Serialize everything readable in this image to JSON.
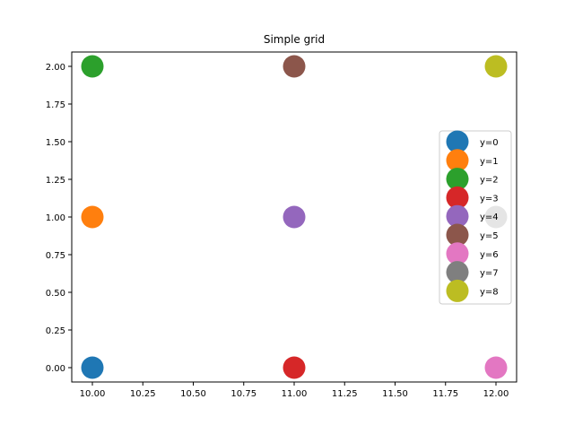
{
  "chart_data": {
    "type": "scatter",
    "title": "Simple grid",
    "xlabel": "",
    "ylabel": "",
    "xlim": [
      9.9,
      12.1
    ],
    "ylim": [
      -0.1,
      2.1
    ],
    "xticks": [
      "10.00",
      "10.25",
      "10.50",
      "10.75",
      "11.00",
      "11.25",
      "11.50",
      "11.75",
      "12.00"
    ],
    "yticks": [
      "0.00",
      "0.25",
      "0.50",
      "0.75",
      "1.00",
      "1.25",
      "1.50",
      "1.75",
      "2.00"
    ],
    "legend_position": "center right",
    "series": [
      {
        "name": "y=0",
        "x": 10,
        "y": 0,
        "color": "#1f77b4"
      },
      {
        "name": "y=1",
        "x": 10,
        "y": 1,
        "color": "#ff7f0e"
      },
      {
        "name": "y=2",
        "x": 10,
        "y": 2,
        "color": "#2ca02c"
      },
      {
        "name": "y=3",
        "x": 11,
        "y": 0,
        "color": "#d62728"
      },
      {
        "name": "y=4",
        "x": 11,
        "y": 1,
        "color": "#9467bd"
      },
      {
        "name": "y=5",
        "x": 11,
        "y": 2,
        "color": "#8c564b"
      },
      {
        "name": "y=6",
        "x": 12,
        "y": 0,
        "color": "#e377c2"
      },
      {
        "name": "y=7",
        "x": 12,
        "y": 1,
        "color": "#7f7f7f"
      },
      {
        "name": "y=8",
        "x": 12,
        "y": 2,
        "color": "#bcbd22"
      }
    ]
  }
}
